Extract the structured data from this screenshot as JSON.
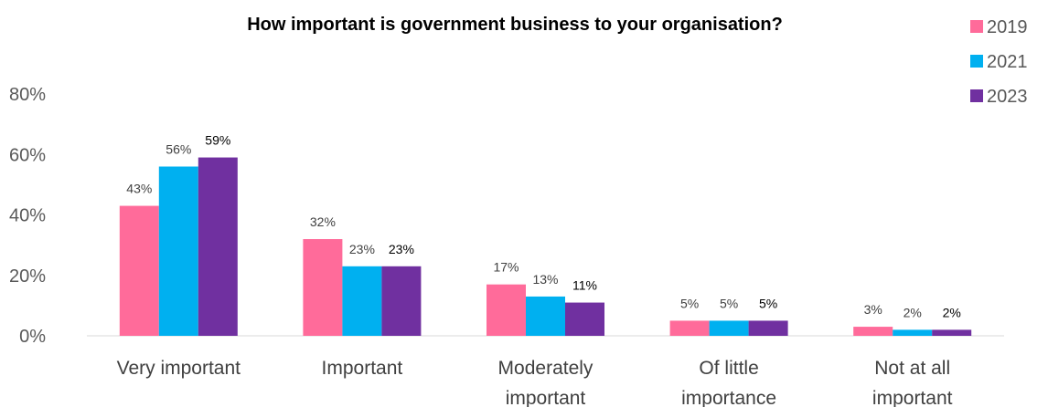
{
  "chart_data": {
    "type": "bar",
    "title": "How important is government business to your organisation?",
    "categories": [
      [
        "Very important"
      ],
      [
        "Important"
      ],
      [
        "Moderately",
        "important"
      ],
      [
        "Of little",
        "importance"
      ],
      [
        "Not at all",
        "important"
      ]
    ],
    "series": [
      {
        "name": "2019",
        "color": "#FF6B9A",
        "values": [
          43,
          32,
          17,
          5,
          3
        ],
        "labels": [
          "43%",
          "32%",
          "17%",
          "5%",
          "3%"
        ]
      },
      {
        "name": "2021",
        "color": "#00B0F0",
        "values": [
          56,
          23,
          13,
          5,
          2
        ],
        "labels": [
          "56%",
          "23%",
          "13%",
          "5%",
          "2%"
        ]
      },
      {
        "name": "2023",
        "color": "#7030A0",
        "values": [
          59,
          23,
          11,
          5,
          2
        ],
        "labels": [
          "59%",
          "23%",
          "11%",
          "5%",
          "2%"
        ]
      }
    ],
    "yticks": [
      "0%",
      "20%",
      "40%",
      "60%",
      "80%"
    ],
    "ylim": [
      0,
      80
    ],
    "grid": false,
    "legend_position": "top-right"
  }
}
